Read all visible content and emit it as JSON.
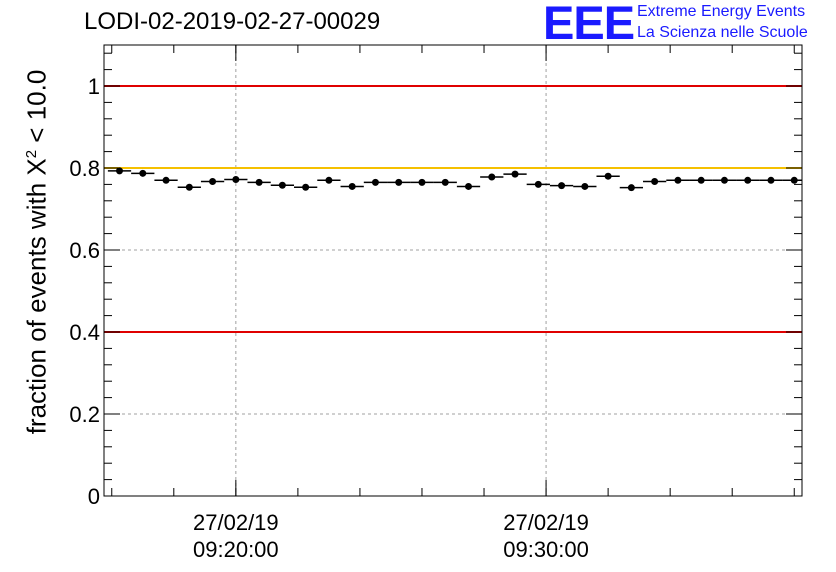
{
  "header": {
    "title": "LODI-02-2019-02-27-00029"
  },
  "logo": {
    "mark": "EEE",
    "line1": "Extreme Energy Events",
    "line2": "La Scienza nelle Scuole"
  },
  "colors": {
    "red_line": "#e00000",
    "yellow_line": "#f5c000",
    "grid": "#a0a0a0",
    "logo": "#1a1aff"
  },
  "chart_data": {
    "type": "scatter",
    "title": "LODI-02-2019-02-27-00029",
    "ylabel": {
      "prefix": "fraction of events with X",
      "sup": "2",
      "suffix": " < 10.0"
    },
    "xlabel": "",
    "ylim": [
      0,
      1.1
    ],
    "yticks": [
      0,
      0.2,
      0.4,
      0.6,
      0.8,
      1
    ],
    "ytick_labels": [
      "0",
      "0.2",
      "0.4",
      "0.6",
      "0.8",
      "1"
    ],
    "x_unit": "minutes since 09:20:00",
    "xlim": [
      -4.25,
      18.25
    ],
    "xticks": [
      {
        "x": 0,
        "date": "27/02/19",
        "time": "09:20:00"
      },
      {
        "x": 10,
        "date": "27/02/19",
        "time": "09:30:00"
      }
    ],
    "grid": true,
    "reference_lines": [
      {
        "y": 1.0,
        "color": "red"
      },
      {
        "y": 0.8,
        "color": "yellow"
      },
      {
        "y": 0.4,
        "color": "red"
      }
    ],
    "bin_width": 0.75,
    "x": [
      -3.75,
      -3.0,
      -2.25,
      -1.5,
      -0.75,
      0.0,
      0.75,
      1.5,
      2.25,
      3.0,
      3.75,
      4.5,
      5.25,
      6.0,
      6.75,
      7.5,
      8.25,
      9.0,
      9.75,
      10.5,
      11.25,
      12.0,
      12.75,
      13.5,
      14.25,
      15.0,
      15.75,
      16.5,
      17.25,
      18.0
    ],
    "values": [
      0.793,
      0.787,
      0.77,
      0.753,
      0.767,
      0.772,
      0.765,
      0.758,
      0.753,
      0.77,
      0.755,
      0.765,
      0.765,
      0.765,
      0.765,
      0.755,
      0.778,
      0.785,
      0.76,
      0.757,
      0.755,
      0.78,
      0.752,
      0.767,
      0.77,
      0.77,
      0.77,
      0.77,
      0.77,
      0.77
    ]
  }
}
